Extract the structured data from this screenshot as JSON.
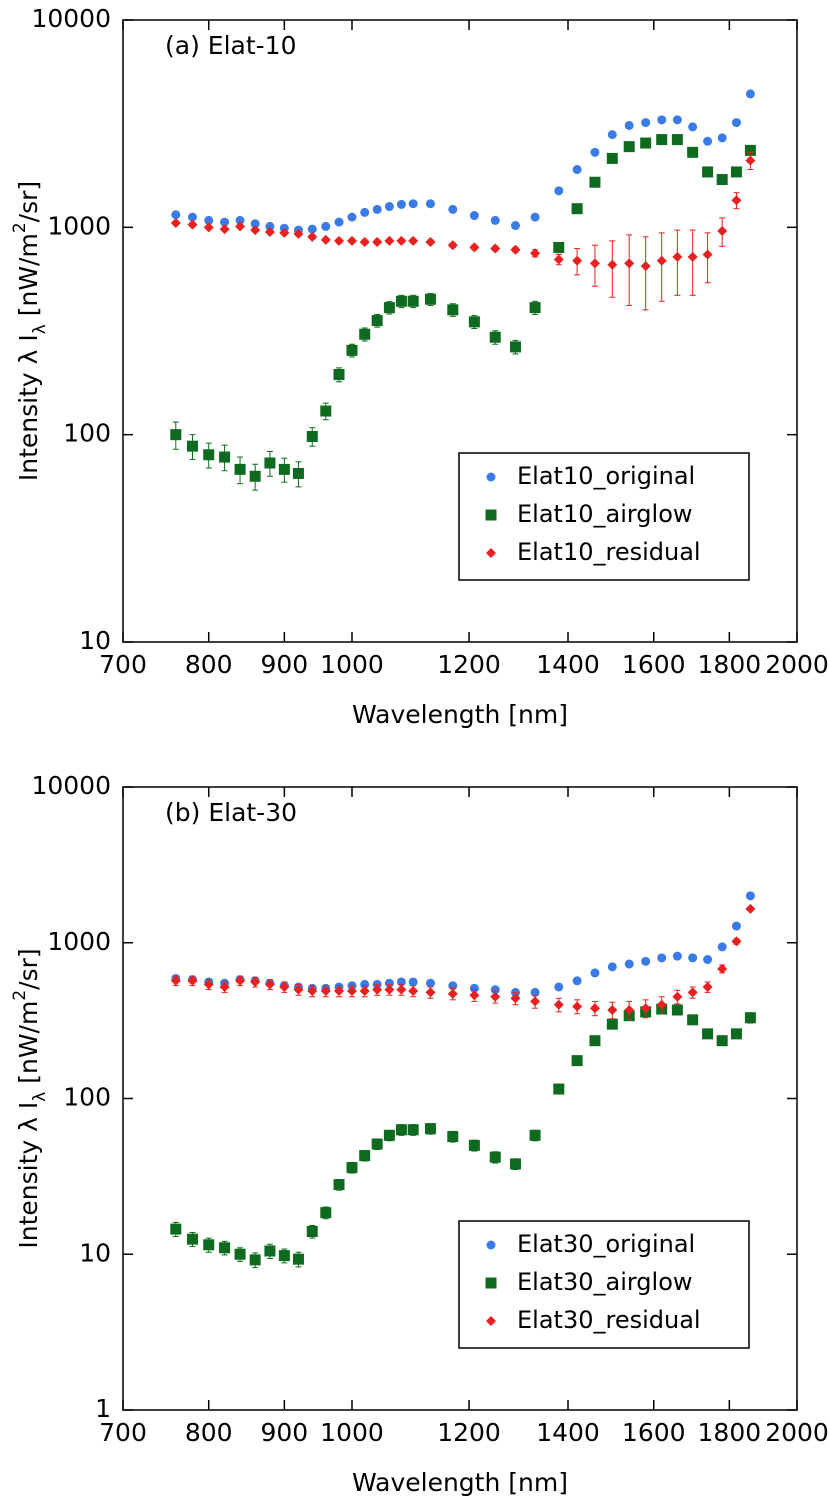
{
  "chart_data": [
    {
      "type": "scatter",
      "title": "(a) Elat-10",
      "xlabel": "Wavelength [nm]",
      "ylabel_parts": [
        "Intensity  λ I",
        "λ",
        " [nW/m",
        "2",
        "/sr]"
      ],
      "xscale": "log",
      "yscale": "log",
      "xlim": [
        700,
        2000
      ],
      "xticks": [
        700,
        800,
        900,
        1000,
        1200,
        1400,
        1600,
        1800,
        2000
      ],
      "ylim": [
        10,
        10000
      ],
      "yticks": [
        10,
        100,
        1000,
        10000
      ],
      "legend": "lower right",
      "x": [
        760,
        780,
        800,
        820,
        840,
        860,
        880,
        900,
        920,
        940,
        960,
        980,
        1000,
        1020,
        1040,
        1060,
        1080,
        1100,
        1130,
        1170,
        1210,
        1250,
        1290,
        1330,
        1380,
        1420,
        1460,
        1500,
        1540,
        1580,
        1620,
        1660,
        1700,
        1740,
        1780,
        1820,
        1860
      ],
      "series": [
        {
          "name": "Elat10_original",
          "color": "#3b7be8",
          "marker": "circle",
          "values": [
            1150,
            1120,
            1080,
            1060,
            1080,
            1040,
            1010,
            990,
            970,
            980,
            1010,
            1060,
            1120,
            1180,
            1220,
            1260,
            1290,
            1300,
            1300,
            1220,
            1140,
            1080,
            1020,
            1120,
            1500,
            1900,
            2300,
            2800,
            3100,
            3200,
            3300,
            3300,
            3050,
            2600,
            2700,
            3200,
            4400
          ]
        },
        {
          "name": "Elat10_airglow",
          "color": "#0e6a1f",
          "marker": "square",
          "values": [
            100,
            88,
            80,
            78,
            68,
            63,
            73,
            68,
            65,
            98,
            130,
            195,
            255,
            305,
            355,
            410,
            440,
            440,
            450,
            400,
            350,
            295,
            265,
            410,
            800,
            1230,
            1650,
            2150,
            2450,
            2550,
            2650,
            2650,
            2300,
            1850,
            1700,
            1850,
            2350
          ],
          "errors": [
            15,
            12,
            11,
            11,
            10,
            9,
            10,
            9,
            9,
            10,
            12,
            15,
            18,
            22,
            25,
            28,
            30,
            30,
            30,
            28,
            25,
            22,
            20,
            30,
            45,
            60,
            75,
            90,
            100,
            100,
            100,
            100,
            90,
            80,
            70,
            75,
            100
          ]
        },
        {
          "name": "Elat10_residual",
          "color": "#e82020",
          "marker": "diamond",
          "values": [
            1050,
            1030,
            1000,
            980,
            1010,
            970,
            950,
            940,
            930,
            900,
            870,
            860,
            860,
            850,
            850,
            860,
            860,
            860,
            850,
            820,
            800,
            790,
            780,
            750,
            700,
            690,
            670,
            660,
            670,
            650,
            690,
            720,
            720,
            740,
            960,
            1350,
            2100
          ],
          "errors": [
            20,
            20,
            20,
            20,
            20,
            20,
            20,
            20,
            20,
            20,
            20,
            20,
            20,
            20,
            20,
            20,
            20,
            20,
            20,
            20,
            20,
            20,
            20,
            30,
            40,
            100,
            150,
            200,
            250,
            250,
            250,
            250,
            250,
            200,
            150,
            120,
            200
          ]
        }
      ]
    },
    {
      "type": "scatter",
      "title": "(b) Elat-30",
      "xlabel": "Wavelength [nm]",
      "ylabel_parts": [
        "Intensity  λ I",
        "λ",
        " [nW/m",
        "2",
        "/sr]"
      ],
      "xscale": "log",
      "yscale": "log",
      "xlim": [
        700,
        2000
      ],
      "xticks": [
        700,
        800,
        900,
        1000,
        1200,
        1400,
        1600,
        1800,
        2000
      ],
      "ylim": [
        1,
        10000
      ],
      "yticks": [
        1,
        10,
        100,
        1000,
        10000
      ],
      "legend": "lower right",
      "x": [
        760,
        780,
        800,
        820,
        840,
        860,
        880,
        900,
        920,
        940,
        960,
        980,
        1000,
        1020,
        1040,
        1060,
        1080,
        1100,
        1130,
        1170,
        1210,
        1250,
        1290,
        1330,
        1380,
        1420,
        1460,
        1500,
        1540,
        1580,
        1620,
        1660,
        1700,
        1740,
        1780,
        1820,
        1860
      ],
      "series": [
        {
          "name": "Elat30_original",
          "color": "#3b7be8",
          "marker": "circle",
          "values": [
            590,
            580,
            560,
            550,
            580,
            570,
            550,
            530,
            520,
            510,
            510,
            520,
            530,
            540,
            540,
            550,
            560,
            560,
            550,
            530,
            510,
            500,
            480,
            480,
            520,
            570,
            640,
            700,
            730,
            760,
            800,
            820,
            800,
            780,
            940,
            1280,
            2000
          ]
        },
        {
          "name": "Elat30_airglow",
          "color": "#0e6a1f",
          "marker": "square",
          "values": [
            14.5,
            12.5,
            11.5,
            11,
            10,
            9.2,
            10.5,
            9.8,
            9.3,
            14,
            18.5,
            28,
            36,
            43,
            51,
            58,
            63,
            63,
            64,
            57,
            50,
            42,
            38,
            58,
            115,
            175,
            235,
            300,
            340,
            360,
            375,
            370,
            320,
            260,
            235,
            260,
            330
          ],
          "errors": [
            1.5,
            1.3,
            1.2,
            1.1,
            1,
            1,
            1.1,
            1,
            1,
            1.3,
            1.6,
            2.2,
            2.8,
            3.3,
            4,
            4.5,
            5,
            5,
            5,
            4.5,
            4,
            3.5,
            3,
            4.5,
            8,
            11,
            15,
            18,
            20,
            22,
            22,
            22,
            20,
            17,
            15,
            17,
            25
          ]
        },
        {
          "name": "Elat30_residual",
          "color": "#e82020",
          "marker": "diamond",
          "values": [
            570,
            570,
            540,
            520,
            570,
            560,
            540,
            520,
            500,
            490,
            490,
            490,
            490,
            490,
            500,
            500,
            500,
            490,
            480,
            470,
            460,
            450,
            440,
            420,
            400,
            390,
            380,
            370,
            370,
            380,
            400,
            450,
            480,
            520,
            680,
            1020,
            1650
          ],
          "errors": [
            40,
            40,
            40,
            40,
            40,
            40,
            40,
            40,
            40,
            40,
            40,
            40,
            40,
            40,
            40,
            40,
            40,
            40,
            40,
            40,
            40,
            40,
            40,
            40,
            40,
            40,
            40,
            45,
            50,
            50,
            50,
            45,
            40,
            40,
            40,
            40,
            40
          ]
        }
      ]
    }
  ]
}
